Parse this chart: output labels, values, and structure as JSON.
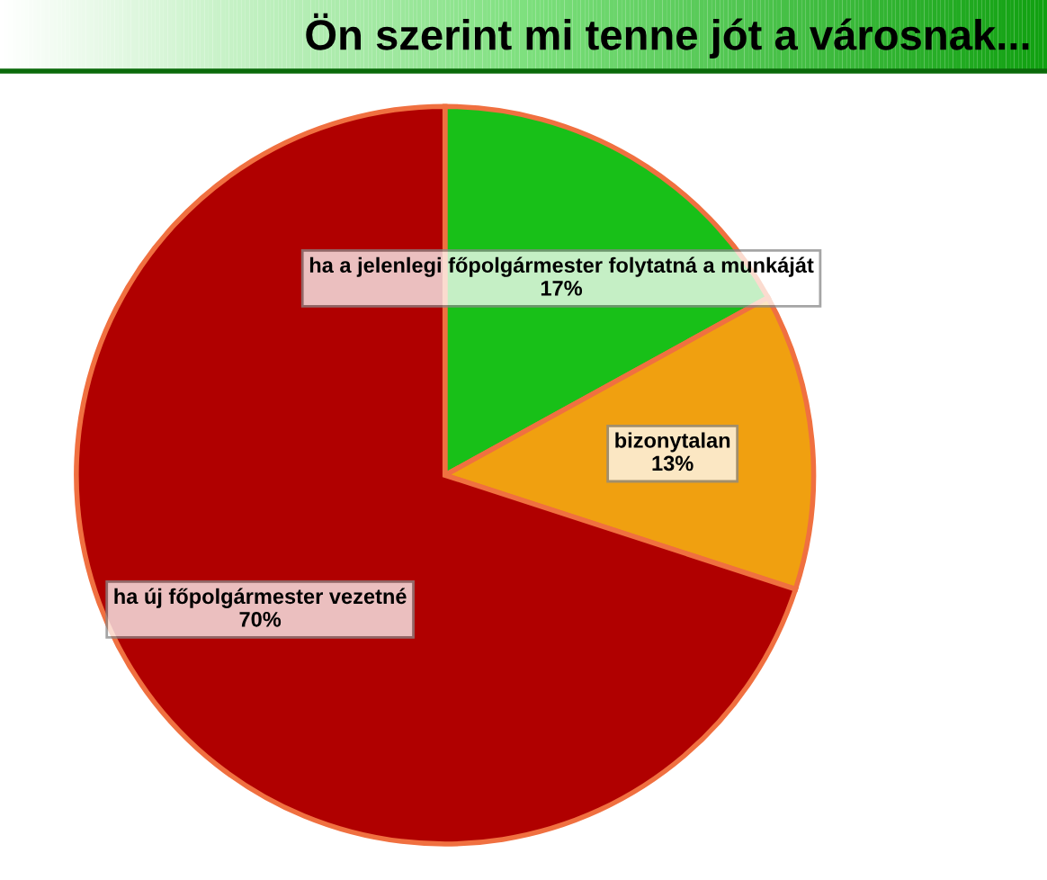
{
  "chart_data": {
    "type": "pie",
    "title": "Ön szerint mi tenne jót a városnak...",
    "categories": [
      "ha a jelenlegi főpolgármester folytatná a munkáját",
      "bizonytalan",
      "ha új főpolgármester vezetné"
    ],
    "values": [
      17,
      13,
      70
    ],
    "value_labels": [
      "17%",
      "13%",
      "70%"
    ],
    "colors": [
      "#18c018",
      "#f0a010",
      "#b00000"
    ],
    "legend": false
  }
}
